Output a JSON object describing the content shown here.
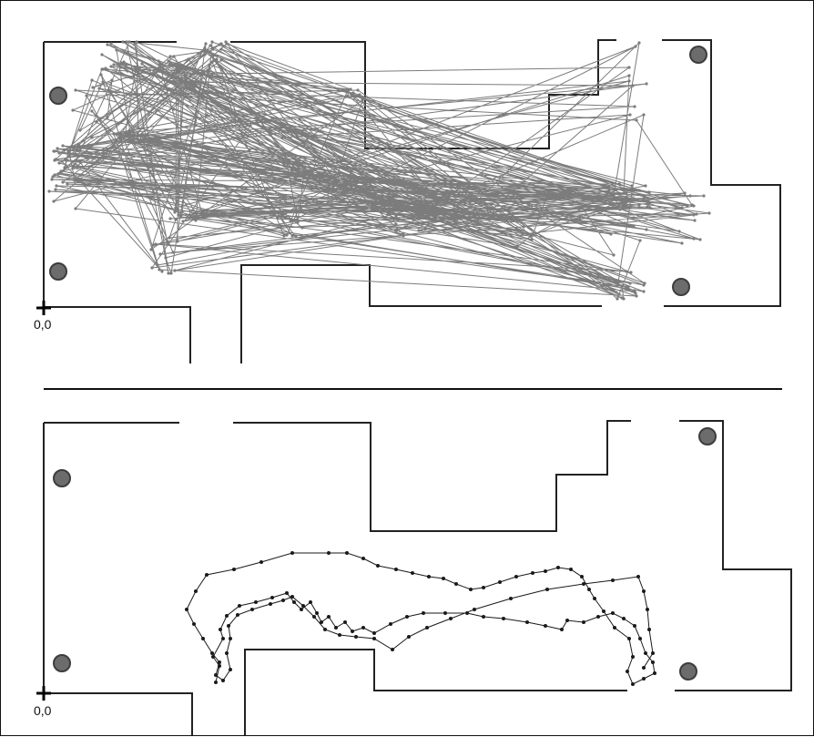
{
  "top_panel": {
    "origin_label": "0,0"
  },
  "bottom_panel": {
    "origin_label": "0,0"
  },
  "colors": {
    "walls": "#222222",
    "top_track": "#7c7c7c",
    "bottom_track": "#1a1a1a",
    "beacon_fill": "#6c6c6c",
    "beacon_stroke": "#3d3d3d"
  }
}
